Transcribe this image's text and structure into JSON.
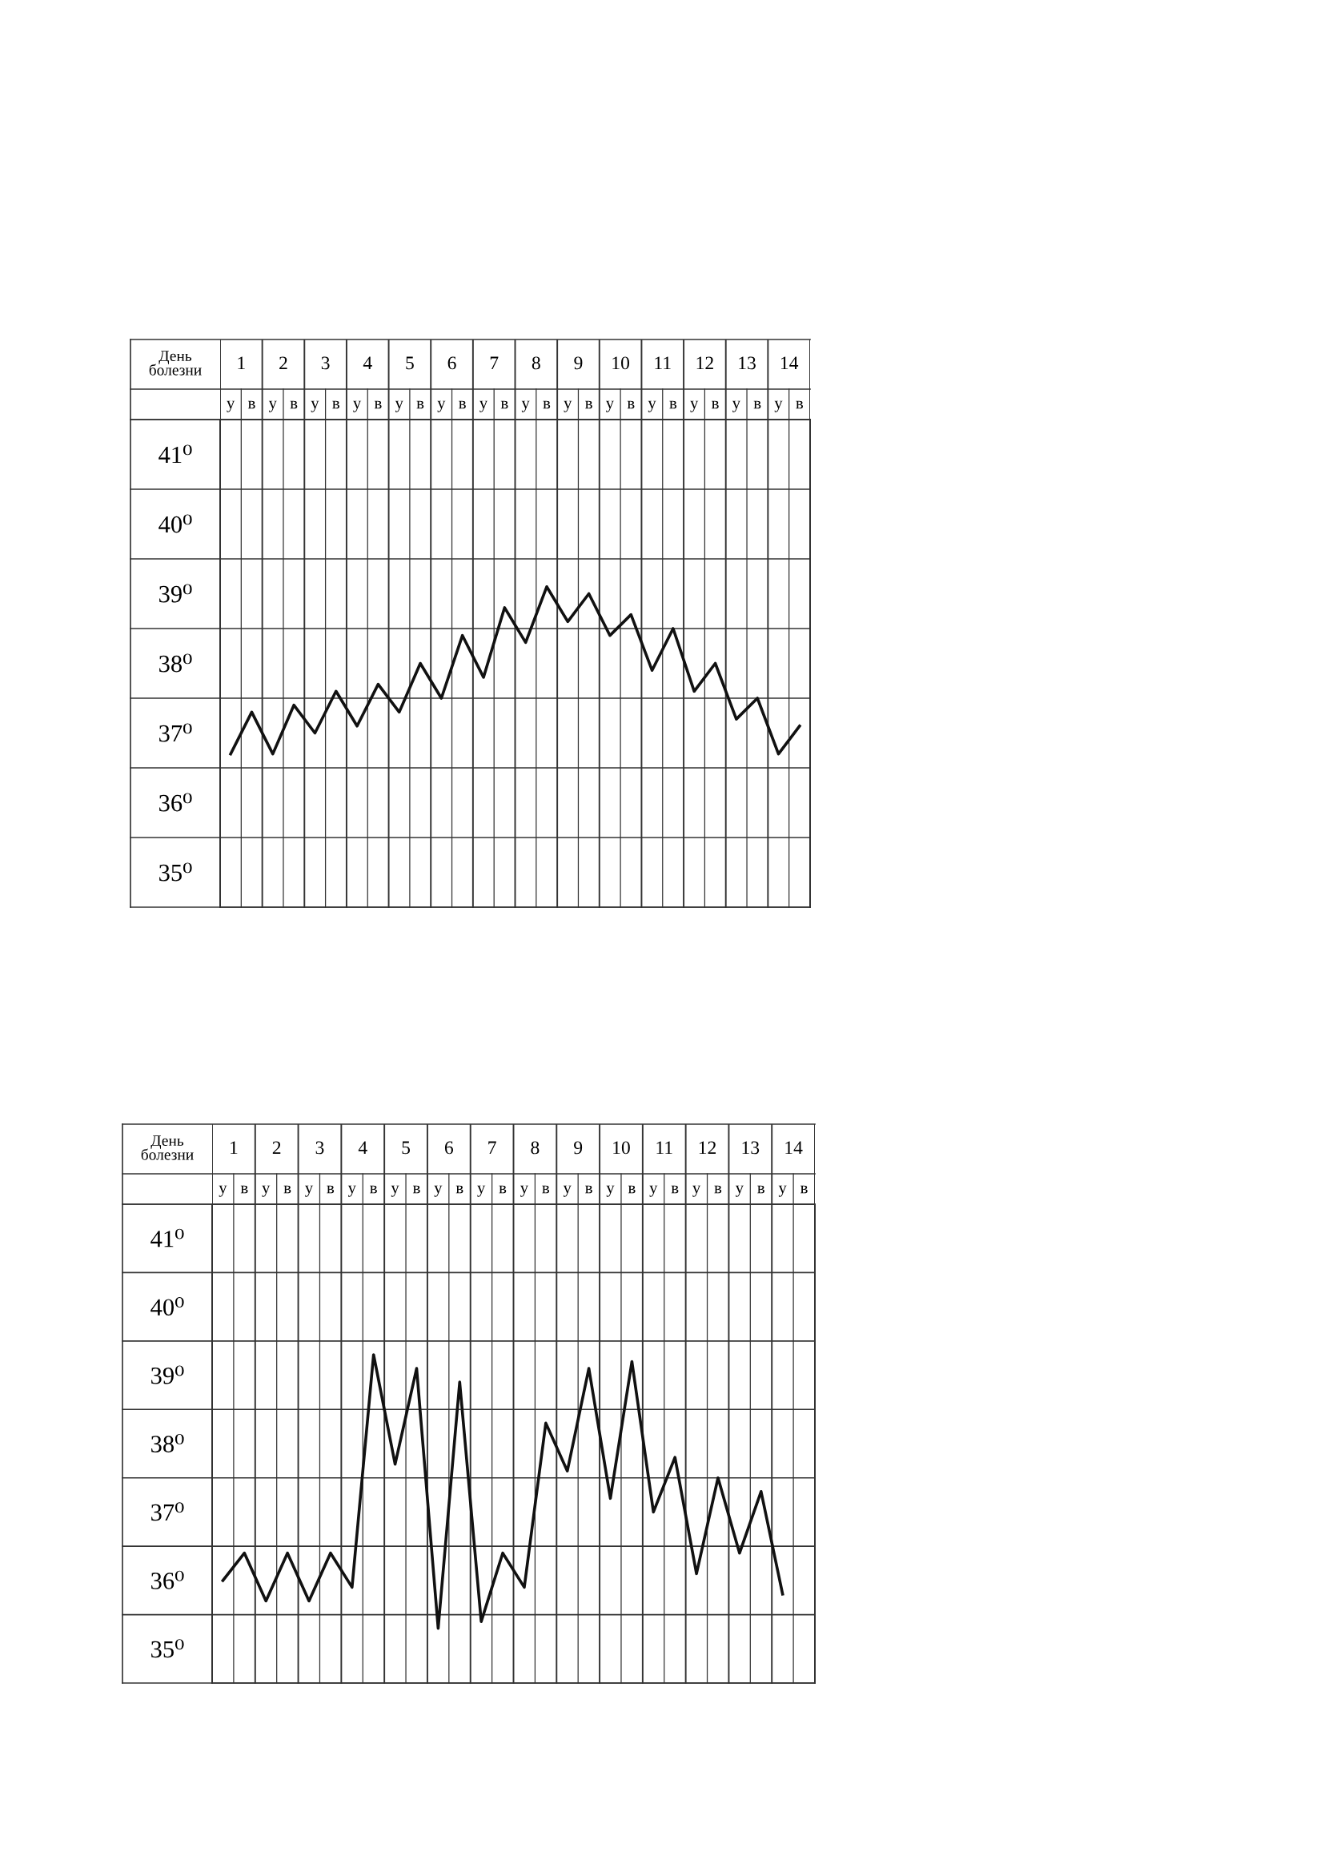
{
  "chart_data": [
    {
      "type": "line",
      "x2label": "День\nболезни",
      "categories": [
        "у",
        "в",
        "у",
        "в",
        "у",
        "в",
        "у",
        "в",
        "у",
        "в",
        "у",
        "в",
        "у",
        "в",
        "у",
        "в",
        "у",
        "в",
        "у",
        "в",
        "у",
        "в",
        "у",
        "в",
        "у",
        "в",
        "у",
        "в"
      ],
      "series": [
        {
          "color": "#111111",
          "values": [
            36.7,
            37.3,
            36.7,
            37.4,
            37.0,
            37.6,
            37.1,
            37.7,
            37.3,
            38.0,
            37.5,
            38.4,
            37.8,
            38.8,
            38.3,
            39.1,
            38.6,
            39.0,
            38.4,
            38.7,
            37.9,
            38.5,
            37.6,
            38.0,
            37.2,
            37.5,
            36.7,
            37.1
          ]
        }
      ],
      "ylim": [
        34.5,
        41.5
      ],
      "yticks": [
        {
          "value": 35,
          "label": "35⁰"
        },
        {
          "value": 36,
          "label": "36⁰"
        },
        {
          "value": 37,
          "label": "37⁰"
        },
        {
          "value": 38,
          "label": "38⁰"
        },
        {
          "value": 39,
          "label": "39⁰"
        },
        {
          "value": 40,
          "label": "40⁰"
        },
        {
          "value": 41,
          "label": "41⁰"
        },
        {
          "value": 35.5,
          "label": null
        },
        {
          "value": 36.5,
          "label": null
        },
        {
          "value": 37.5,
          "label": null
        },
        {
          "value": 38.5,
          "label": null
        },
        {
          "value": 39.5,
          "label": null
        },
        {
          "value": 40.5,
          "label": null
        }
      ],
      "x2lim": [
        0.5,
        14.5
      ],
      "x2ticks": [
        1,
        2,
        3,
        4,
        5,
        6,
        7,
        8,
        9,
        10,
        11,
        12,
        13,
        14
      ],
      "grid": true,
      "marker": "none",
      "line_style": "solid"
    },
    {
      "type": "line",
      "x2label": "День\nболезни",
      "categories": [
        "у",
        "в",
        "у",
        "в",
        "у",
        "в",
        "у",
        "в",
        "у",
        "в",
        "у",
        "в",
        "у",
        "в",
        "у",
        "в",
        "у",
        "в",
        "у",
        "в",
        "у",
        "в",
        "у",
        "в",
        "у",
        "в",
        "у",
        "в"
      ],
      "series": [
        {
          "color": "#111111",
          "values": [
            36.0,
            36.4,
            35.7,
            36.4,
            35.7,
            36.4,
            35.9,
            39.3,
            37.7,
            39.1,
            35.3,
            38.9,
            35.4,
            36.4,
            35.9,
            38.3,
            37.6,
            39.1,
            37.2,
            39.2,
            37.0,
            37.8,
            36.1,
            37.5,
            36.4,
            37.3,
            35.8,
            null
          ]
        }
      ],
      "ylim": [
        34.5,
        41.5
      ],
      "yticks": [
        {
          "value": 35,
          "label": "35⁰"
        },
        {
          "value": 36,
          "label": "36⁰"
        },
        {
          "value": 37,
          "label": "37⁰"
        },
        {
          "value": 38,
          "label": "38⁰"
        },
        {
          "value": 39,
          "label": "39⁰"
        },
        {
          "value": 40,
          "label": "40⁰"
        },
        {
          "value": 41,
          "label": "41⁰"
        },
        {
          "value": 35.5,
          "label": null
        },
        {
          "value": 36.5,
          "label": null
        },
        {
          "value": 37.5,
          "label": null
        },
        {
          "value": 38.5,
          "label": null
        },
        {
          "value": 39.5,
          "label": null
        },
        {
          "value": 40.5,
          "label": null
        }
      ],
      "x2lim": [
        0.5,
        14.5
      ],
      "x2ticks": [
        1,
        2,
        3,
        4,
        5,
        6,
        7,
        8,
        9,
        10,
        11,
        12,
        13,
        14
      ],
      "grid": true,
      "marker": "none",
      "line_style": "solid"
    }
  ]
}
